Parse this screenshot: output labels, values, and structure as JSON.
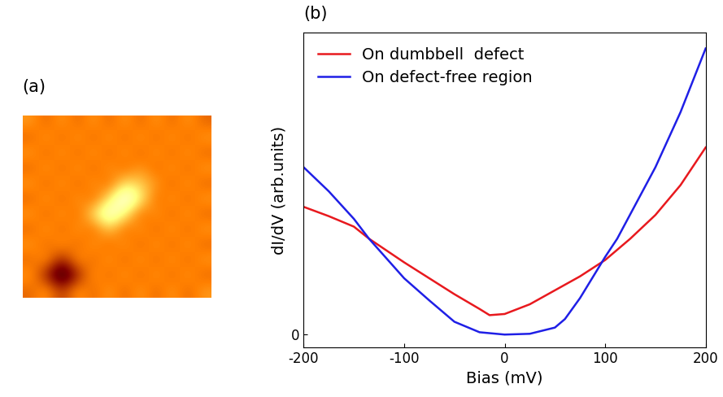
{
  "chart_data": [
    {
      "type": "heatmap",
      "title": "(a)",
      "tick_labels": false,
      "zlim": [
        0,
        1
      ],
      "cells": [
        [
          0.55,
          0.45,
          0.55,
          0.45,
          0.55,
          0.45,
          0.55,
          0.45,
          0.55,
          0.45,
          0.55,
          0.45
        ],
        [
          0.45,
          0.55,
          0.45,
          0.55,
          0.45,
          0.55,
          0.45,
          0.55,
          0.45,
          0.55,
          0.45,
          0.55
        ],
        [
          0.55,
          0.45,
          0.55,
          0.45,
          0.55,
          0.45,
          0.55,
          0.45,
          0.55,
          0.45,
          0.55,
          0.45
        ],
        [
          0.45,
          0.55,
          0.45,
          0.55,
          0.45,
          0.55,
          0.45,
          0.55,
          0.45,
          0.55,
          0.45,
          0.55
        ],
        [
          0.55,
          0.45,
          0.55,
          0.45,
          0.55,
          0.45,
          0.7,
          0.65,
          0.55,
          0.45,
          0.55,
          0.45
        ],
        [
          0.45,
          0.55,
          0.45,
          0.55,
          0.45,
          0.7,
          1.0,
          0.75,
          0.45,
          0.55,
          0.45,
          0.55
        ],
        [
          0.55,
          0.45,
          0.55,
          0.45,
          0.7,
          0.95,
          0.75,
          0.45,
          0.55,
          0.45,
          0.55,
          0.45
        ],
        [
          0.45,
          0.55,
          0.45,
          0.55,
          0.45,
          0.65,
          0.45,
          0.55,
          0.45,
          0.55,
          0.45,
          0.55
        ],
        [
          0.55,
          0.45,
          0.55,
          0.45,
          0.55,
          0.45,
          0.55,
          0.45,
          0.55,
          0.45,
          0.55,
          0.45
        ],
        [
          0.45,
          0.55,
          0.3,
          0.55,
          0.45,
          0.55,
          0.45,
          0.55,
          0.45,
          0.55,
          0.45,
          0.55
        ],
        [
          0.55,
          0.3,
          0.05,
          0.3,
          0.55,
          0.45,
          0.55,
          0.45,
          0.55,
          0.45,
          0.55,
          0.45
        ],
        [
          0.45,
          0.55,
          0.35,
          0.55,
          0.45,
          0.55,
          0.45,
          0.55,
          0.45,
          0.55,
          0.45,
          0.55
        ]
      ]
    },
    {
      "type": "line",
      "title": "(b)",
      "x_label": "Bias (mV)",
      "y_label": "dI/dV (arb.units)",
      "xlim": [
        -200,
        200
      ],
      "xticks": [
        -200,
        -100,
        0,
        100,
        200
      ],
      "ylim": [
        -0.33,
        7.78
      ],
      "yticks": [
        0
      ],
      "legend": "upper left",
      "series": [
        {
          "name": "On dumbbell  defect",
          "color": "#e8191e",
          "x": [
            -200,
            -175,
            -150,
            -135,
            -100,
            -75,
            -50,
            -25,
            -15,
            0,
            25,
            50,
            75,
            100,
            125,
            150,
            175,
            200
          ],
          "values": [
            3.29,
            3.05,
            2.78,
            2.47,
            1.86,
            1.45,
            1.04,
            0.66,
            0.5,
            0.53,
            0.78,
            1.14,
            1.5,
            1.92,
            2.47,
            3.08,
            3.85,
            4.82
          ]
        },
        {
          "name": "On defect-free region",
          "color": "#1f1fe6",
          "x": [
            -200,
            -175,
            -150,
            -135,
            -100,
            -75,
            -50,
            -25,
            0,
            25,
            50,
            60,
            75,
            100,
            112,
            150,
            175,
            200
          ],
          "values": [
            4.31,
            3.69,
            2.98,
            2.47,
            1.45,
            0.88,
            0.33,
            0.06,
            0.0,
            0.02,
            0.18,
            0.4,
            0.94,
            2.0,
            2.47,
            4.31,
            5.73,
            7.37
          ]
        }
      ]
    }
  ]
}
